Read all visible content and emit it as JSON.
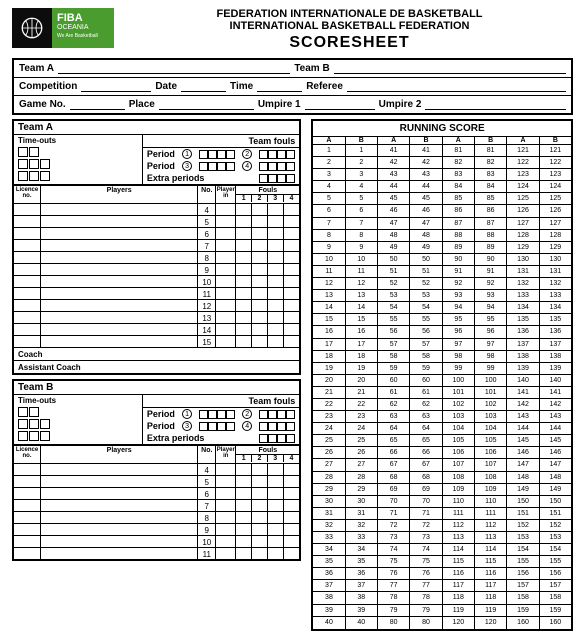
{
  "header": {
    "org1": "FEDERATION INTERNATIONALE DE BASKETBALL",
    "org2": "INTERNATIONAL BASKETBALL FEDERATION",
    "title": "SCORESHEET",
    "logo_brand": "FIBA",
    "logo_region": "OCEANIA",
    "logo_tag": "We Are Basketball"
  },
  "info": {
    "teamA": "Team A",
    "teamB": "Team B",
    "competition": "Competition",
    "date": "Date",
    "time": "Time",
    "referee": "Referee",
    "gameno": "Game No.",
    "place": "Place",
    "umpire1": "Umpire 1",
    "umpire2": "Umpire 2"
  },
  "teamA": {
    "title": "Team A",
    "timeouts": "Time-outs",
    "period": "Period",
    "extra": "Extra periods",
    "teamfouls": "Team fouls",
    "licence": "Licence no.",
    "players": "Players",
    "no": "No.",
    "playerin": "Player in",
    "fouls": "Fouls",
    "nums": [
      "4",
      "5",
      "6",
      "7",
      "8",
      "9",
      "10",
      "11",
      "12",
      "13",
      "14",
      "15"
    ],
    "coach": "Coach",
    "asst": "Assistant Coach"
  },
  "teamB": {
    "title": "Team B",
    "nums": [
      "4",
      "5",
      "6",
      "7",
      "8",
      "9",
      "10",
      "11"
    ]
  },
  "running": {
    "title": "RUNNING SCORE",
    "cols": [
      "A",
      "B",
      "A",
      "B",
      "A",
      "B",
      "A",
      "B"
    ],
    "rows": 40,
    "start": [
      1,
      41,
      81,
      121
    ]
  }
}
